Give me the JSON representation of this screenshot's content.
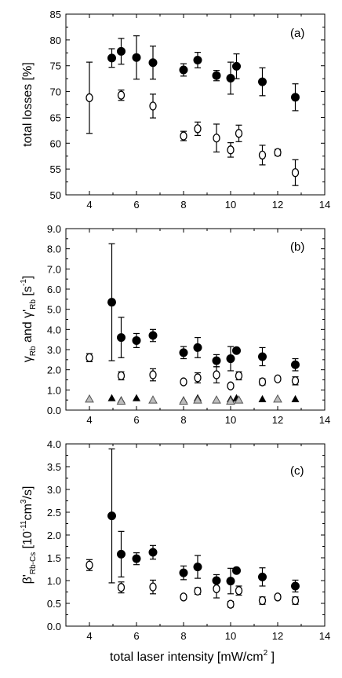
{
  "figure": {
    "shared_xlabel": "total laser intensity [mW/cm",
    "shared_xlabel_sup": "2",
    "shared_xlabel_end": " ]"
  },
  "chart_data": [
    {
      "type": "scatter",
      "panel_label": "(a)",
      "ylabel": "total losses [%]",
      "xlim": [
        3,
        14
      ],
      "ylim": [
        50,
        85
      ],
      "xticks": [
        4,
        6,
        8,
        10,
        12,
        14
      ],
      "yticks": [
        50,
        55,
        60,
        65,
        70,
        75,
        80,
        85
      ],
      "series": [
        {
          "marker": "filled-circle",
          "points": [
            {
              "x": 4.95,
              "y": 76.5,
              "err": 1.8
            },
            {
              "x": 5.35,
              "y": 77.8,
              "err": 2.5
            },
            {
              "x": 6.0,
              "y": 76.6,
              "err": 4.2
            },
            {
              "x": 6.7,
              "y": 75.6,
              "err": 3.2
            },
            {
              "x": 8.0,
              "y": 74.2,
              "err": 1.2
            },
            {
              "x": 8.6,
              "y": 76.1,
              "err": 1.5
            },
            {
              "x": 9.4,
              "y": 73.1,
              "err": 1.0
            },
            {
              "x": 10.0,
              "y": 72.6,
              "err": 3.1
            },
            {
              "x": 10.25,
              "y": 74.9,
              "err": 2.4
            },
            {
              "x": 11.35,
              "y": 71.9,
              "err": 2.7
            },
            {
              "x": 12.75,
              "y": 68.9,
              "err": 2.6
            }
          ]
        },
        {
          "marker": "open-circle",
          "points": [
            {
              "x": 4.0,
              "y": 68.8,
              "err": 6.9
            },
            {
              "x": 5.35,
              "y": 69.3,
              "err": 1.0
            },
            {
              "x": 6.7,
              "y": 67.2,
              "err": 2.3
            },
            {
              "x": 8.0,
              "y": 61.4,
              "err": 0.9
            },
            {
              "x": 8.6,
              "y": 62.8,
              "err": 1.3
            },
            {
              "x": 9.4,
              "y": 61.0,
              "err": 2.7
            },
            {
              "x": 10.0,
              "y": 58.7,
              "err": 1.4
            },
            {
              "x": 10.35,
              "y": 61.9,
              "err": 1.6
            },
            {
              "x": 11.35,
              "y": 57.7,
              "err": 1.9
            },
            {
              "x": 12.0,
              "y": 58.2,
              "err": 0.6
            },
            {
              "x": 12.75,
              "y": 54.3,
              "err": 2.5
            }
          ]
        }
      ]
    },
    {
      "type": "scatter",
      "panel_label": "(b)",
      "ylabel_gamma": "γ",
      "ylabel_gamma_sub": "Rb",
      "ylabel_and": " and γ'",
      "ylabel_gamma2_sub": "Rb",
      "ylabel_unit": " [s",
      "ylabel_unit_sup": "-1",
      "ylabel_end": "]",
      "xlim": [
        3,
        14
      ],
      "ylim": [
        0.0,
        9.0
      ],
      "xticks": [
        4,
        6,
        8,
        10,
        12,
        14
      ],
      "yticks": [
        0.0,
        1.0,
        2.0,
        3.0,
        4.0,
        5.0,
        6.0,
        7.0,
        8.0,
        9.0
      ],
      "series": [
        {
          "marker": "filled-circle",
          "points": [
            {
              "x": 4.95,
              "y": 5.35,
              "err": 2.9
            },
            {
              "x": 5.35,
              "y": 3.6,
              "err": 1.0
            },
            {
              "x": 6.0,
              "y": 3.45,
              "err": 0.35
            },
            {
              "x": 6.7,
              "y": 3.7,
              "err": 0.3
            },
            {
              "x": 8.0,
              "y": 2.85,
              "err": 0.3
            },
            {
              "x": 8.6,
              "y": 3.1,
              "err": 0.5
            },
            {
              "x": 9.4,
              "y": 2.45,
              "err": 0.3
            },
            {
              "x": 10.0,
              "y": 2.55,
              "err": 0.6
            },
            {
              "x": 10.25,
              "y": 2.95,
              "err": 0.0
            },
            {
              "x": 11.35,
              "y": 2.65,
              "err": 0.45
            },
            {
              "x": 12.75,
              "y": 2.25,
              "err": 0.3
            }
          ]
        },
        {
          "marker": "open-circle",
          "points": [
            {
              "x": 4.0,
              "y": 2.6,
              "err": 0.2
            },
            {
              "x": 5.35,
              "y": 1.7,
              "err": 0.2
            },
            {
              "x": 6.7,
              "y": 1.75,
              "err": 0.3
            },
            {
              "x": 8.0,
              "y": 1.4,
              "err": 0.1
            },
            {
              "x": 8.6,
              "y": 1.6,
              "err": 0.25
            },
            {
              "x": 9.4,
              "y": 1.75,
              "err": 0.4
            },
            {
              "x": 10.0,
              "y": 1.2,
              "err": 0.1
            },
            {
              "x": 10.35,
              "y": 1.7,
              "err": 0.2
            },
            {
              "x": 11.35,
              "y": 1.4,
              "err": 0.15
            },
            {
              "x": 12.0,
              "y": 1.55,
              "err": 0.1
            },
            {
              "x": 12.75,
              "y": 1.45,
              "err": 0.2
            }
          ]
        },
        {
          "marker": "filled-triangle",
          "points": [
            {
              "x": 4.95,
              "y": 0.6
            },
            {
              "x": 5.35,
              "y": 0.5
            },
            {
              "x": 6.0,
              "y": 0.6
            },
            {
              "x": 6.7,
              "y": 0.5
            },
            {
              "x": 8.0,
              "y": 0.5
            },
            {
              "x": 8.6,
              "y": 0.6
            },
            {
              "x": 9.4,
              "y": 0.5
            },
            {
              "x": 10.0,
              "y": 0.55
            },
            {
              "x": 10.25,
              "y": 0.6
            },
            {
              "x": 11.35,
              "y": 0.55
            },
            {
              "x": 12.75,
              "y": 0.55
            }
          ]
        },
        {
          "marker": "open-triangle",
          "points": [
            {
              "x": 4.0,
              "y": 0.55
            },
            {
              "x": 5.35,
              "y": 0.45
            },
            {
              "x": 6.7,
              "y": 0.5
            },
            {
              "x": 8.0,
              "y": 0.45
            },
            {
              "x": 8.6,
              "y": 0.5
            },
            {
              "x": 9.4,
              "y": 0.5
            },
            {
              "x": 10.0,
              "y": 0.45
            },
            {
              "x": 10.35,
              "y": 0.5
            },
            {
              "x": 12.0,
              "y": 0.55
            }
          ]
        }
      ]
    },
    {
      "type": "scatter",
      "panel_label": "(c)",
      "ylabel_beta": "β'",
      "ylabel_beta_sub": "Rb-Cs",
      "ylabel_unit": "  [10",
      "ylabel_unit_sup": "-11",
      "ylabel_unit2": "cm",
      "ylabel_unit2_sup": "3",
      "ylabel_end": "/s]",
      "xlim": [
        3,
        14
      ],
      "ylim": [
        0.0,
        4.0
      ],
      "xticks": [
        4,
        6,
        8,
        10,
        12,
        14
      ],
      "yticks": [
        0.0,
        0.5,
        1.0,
        1.5,
        2.0,
        2.5,
        3.0,
        3.5,
        4.0
      ],
      "series": [
        {
          "marker": "filled-circle",
          "points": [
            {
              "x": 4.95,
              "y": 2.42,
              "err": 1.47
            },
            {
              "x": 5.35,
              "y": 1.58,
              "err": 0.5
            },
            {
              "x": 6.0,
              "y": 1.48,
              "err": 0.13
            },
            {
              "x": 6.7,
              "y": 1.62,
              "err": 0.15
            },
            {
              "x": 8.0,
              "y": 1.17,
              "err": 0.15
            },
            {
              "x": 8.6,
              "y": 1.3,
              "err": 0.25
            },
            {
              "x": 9.4,
              "y": 1.0,
              "err": 0.13
            },
            {
              "x": 10.0,
              "y": 0.99,
              "err": 0.28
            },
            {
              "x": 10.25,
              "y": 1.22,
              "err": 0.0
            },
            {
              "x": 11.35,
              "y": 1.08,
              "err": 0.2
            },
            {
              "x": 12.75,
              "y": 0.88,
              "err": 0.13
            }
          ]
        },
        {
          "marker": "open-circle",
          "points": [
            {
              "x": 4.0,
              "y": 1.34,
              "err": 0.12
            },
            {
              "x": 5.35,
              "y": 0.85,
              "err": 0.12
            },
            {
              "x": 6.7,
              "y": 0.86,
              "err": 0.15
            },
            {
              "x": 8.0,
              "y": 0.64,
              "err": 0.05
            },
            {
              "x": 8.6,
              "y": 0.77,
              "err": 0.07
            },
            {
              "x": 9.4,
              "y": 0.82,
              "err": 0.2
            },
            {
              "x": 10.0,
              "y": 0.48,
              "err": 0.06
            },
            {
              "x": 10.35,
              "y": 0.78,
              "err": 0.1
            },
            {
              "x": 11.35,
              "y": 0.56,
              "err": 0.08
            },
            {
              "x": 12.0,
              "y": 0.64,
              "err": 0.05
            },
            {
              "x": 12.75,
              "y": 0.56,
              "err": 0.08
            }
          ]
        }
      ]
    }
  ]
}
